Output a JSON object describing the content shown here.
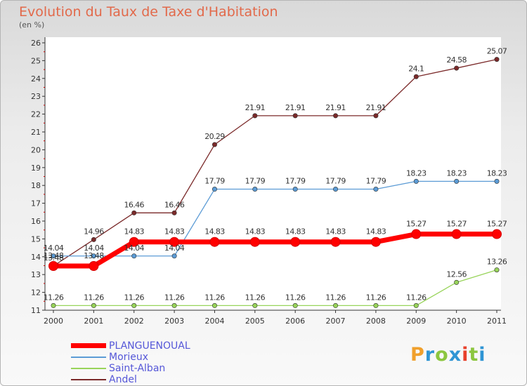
{
  "chart_data": {
    "type": "line",
    "title": "Evolution du Taux de Taxe d'Habitation",
    "unit_label": "(en %)",
    "xlabel": "",
    "ylabel": "",
    "ylim": [
      11,
      26
    ],
    "yticks": [
      "11",
      "12",
      "13",
      "14",
      "15",
      "16",
      "17",
      "18",
      "19",
      "20",
      "21",
      "22",
      "23",
      "24",
      "25",
      "26"
    ],
    "categories": [
      "2000",
      "2001",
      "2002",
      "2003",
      "2004",
      "2005",
      "2006",
      "2007",
      "2008",
      "2009",
      "2010",
      "2011"
    ],
    "grid": "none",
    "legend_position": "bottom-left",
    "series": [
      {
        "name": "PLANGUENOUAL",
        "color": "#ff0000",
        "values": [
          13.48,
          13.48,
          14.83,
          14.83,
          14.83,
          14.83,
          14.83,
          14.83,
          14.83,
          15.27,
          15.27,
          15.27
        ],
        "labels": [
          "13.48",
          "13.48",
          "14.83",
          "14.83",
          "14.83",
          "14.83",
          "14.83",
          "14.83",
          "14.83",
          "15.27",
          "15.27",
          "15.27"
        ]
      },
      {
        "name": "Morieux",
        "color": "#5b9bd5",
        "values": [
          14.04,
          14.04,
          14.04,
          14.04,
          17.79,
          17.79,
          17.79,
          17.79,
          17.79,
          18.23,
          18.23,
          18.23
        ],
        "labels": [
          "14.04",
          "14.04",
          "14.04",
          "14.04",
          "17.79",
          "17.79",
          "17.79",
          "17.79",
          "17.79",
          "18.23",
          "18.23",
          "18.23"
        ]
      },
      {
        "name": "Saint-Alban",
        "color": "#98d45a",
        "values": [
          11.26,
          11.26,
          11.26,
          11.26,
          11.26,
          11.26,
          11.26,
          11.26,
          11.26,
          11.26,
          12.56,
          13.26
        ],
        "labels": [
          "11.26",
          "11.26",
          "11.26",
          "11.26",
          "11.26",
          "11.26",
          "11.26",
          "11.26",
          "11.26",
          "11.26",
          "12.56",
          "13.26"
        ]
      },
      {
        "name": "Andel",
        "color": "#7b2a2a",
        "values": [
          13.48,
          14.96,
          16.46,
          16.46,
          20.29,
          21.91,
          21.91,
          21.91,
          21.91,
          24.1,
          24.58,
          25.07
        ],
        "labels": [
          "13.48",
          "14.96",
          "16.46",
          "16.46",
          "20.29",
          "21.91",
          "21.91",
          "21.91",
          "21.91",
          "24.1",
          "24.58",
          "25.07"
        ]
      }
    ]
  },
  "logo": {
    "letters": [
      "P",
      "r",
      "o",
      "x",
      "i",
      "t",
      "i"
    ],
    "colors": [
      "#f0a02c",
      "#2f95d4",
      "#8cc63f",
      "#2f95d4",
      "#e8412c",
      "#8cc63f",
      "#2f95d4"
    ]
  }
}
